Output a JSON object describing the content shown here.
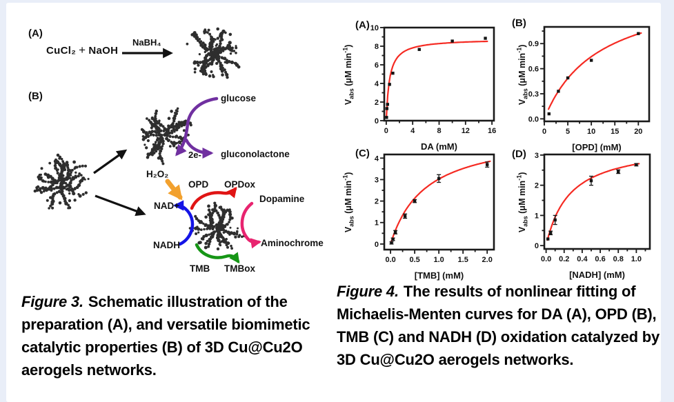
{
  "figure3": {
    "panelA": {
      "label": "(A)",
      "reactants_left": "CuCl₂",
      "plus": "+",
      "reactants_right": "NaOH",
      "arrow_label": "NaBH₄"
    },
    "panelB": {
      "label": "(B)",
      "glucose": "glucose",
      "electrons": "2e-",
      "gluconolactone": "gluconolactone",
      "h2o2": "H₂O₂",
      "opd": "OPD",
      "opdox": "OPDox",
      "dopamine": "Dopamine",
      "nad_plus": "NAD+",
      "nadh": "NADH",
      "aminochrome": "Aminochrome",
      "tmb": "TMB",
      "tmbox": "TMBox"
    },
    "caption": {
      "label": "Figure 3.",
      "text": "Schematic illustration of the preparation (A), and versatile biomimetic catalytic properties (B) of 3D Cu@Cu2O aerogels networks."
    }
  },
  "figure4": {
    "caption": {
      "label": "Figure 4.",
      "text": "The results of nonlinear fitting of Michaelis-Menten curves for DA (A), OPD (B), TMB (C) and NADH (D) oxidation catalyzed by 3D Cu@Cu2O aerogels networks."
    },
    "ylabel": {
      "v": "V",
      "sub": "abs",
      "mid": " (μM min",
      "sup": "-1",
      "close": ")"
    }
  },
  "chart_data": [
    {
      "type": "scatter",
      "panel": "(A)",
      "xlabel": "DA (mM)",
      "ylabel": "Vabs (μM min-1)",
      "xlim": [
        -0.3,
        16.3
      ],
      "ylim": [
        0,
        10
      ],
      "xticks": [
        0,
        4,
        8,
        12,
        16
      ],
      "xtick_labels": [
        "0",
        "4",
        "8",
        "12",
        "16"
      ],
      "xminor_step": 2,
      "yticks": [
        0,
        2,
        4,
        6,
        8,
        10
      ],
      "ytick_labels": [
        "0",
        "2",
        "4",
        "6",
        "8",
        "10"
      ],
      "yminor_step": 1,
      "points": [
        [
          0.05,
          0.35,
          0
        ],
        [
          0.1,
          1.3,
          0
        ],
        [
          0.2,
          1.75,
          0
        ],
        [
          0.5,
          3.9,
          0
        ],
        [
          1,
          5.1,
          0
        ],
        [
          5,
          7.65,
          0
        ],
        [
          10,
          8.55,
          0
        ],
        [
          15,
          8.85,
          0
        ]
      ],
      "fit": {
        "model": "michaelis-menten",
        "vmax": 8.8,
        "km": 0.5,
        "x_start": 0.03,
        "x_end": 15.3
      },
      "grid": false,
      "legend": null
    },
    {
      "type": "scatter",
      "panel": "(B)",
      "xlabel": "[OPD] (mM)",
      "ylabel": "Vabs (μM min-1)",
      "xlim": [
        0,
        22.3
      ],
      "ylim": [
        -0.03,
        1.1
      ],
      "xticks": [
        0,
        5,
        10,
        15,
        20
      ],
      "xtick_labels": [
        "0",
        "5",
        "10",
        "15",
        "20"
      ],
      "xminor_step": 2.5,
      "yticks": [
        0,
        0.3,
        0.6,
        0.9
      ],
      "ytick_labels": [
        "0.0",
        "0.3",
        "0.6",
        "0.9"
      ],
      "yminor_step": 0.15,
      "points": [
        [
          1,
          0.06,
          0
        ],
        [
          3,
          0.33,
          0
        ],
        [
          5,
          0.49,
          0
        ],
        [
          10,
          0.7,
          0
        ],
        [
          20,
          1.02,
          0
        ]
      ],
      "fit": {
        "model": "michaelis-menten",
        "vmax": 1.6,
        "km": 11.5,
        "x_start": 0.9,
        "x_end": 20.6
      },
      "grid": false,
      "legend": null
    },
    {
      "type": "scatter",
      "panel": "(C)",
      "xlabel": "[TMB] (mM)",
      "ylabel": "Vabs (μM min-1)",
      "xlim": [
        -0.13,
        2.14
      ],
      "ylim": [
        -0.26,
        4.17
      ],
      "xticks": [
        0,
        0.5,
        1,
        1.5,
        2
      ],
      "xtick_labels": [
        "0.0",
        "0.5",
        "1.0",
        "1.5",
        "2.0"
      ],
      "xminor_step": 0.25,
      "yticks": [
        0,
        1,
        2,
        3,
        4
      ],
      "ytick_labels": [
        "0",
        "1",
        "2",
        "3",
        "4"
      ],
      "yminor_step": 0.5,
      "points": [
        [
          0.02,
          0.05,
          0.05
        ],
        [
          0.05,
          0.22,
          0.06
        ],
        [
          0.1,
          0.55,
          0.08
        ],
        [
          0.3,
          1.3,
          0.1
        ],
        [
          0.5,
          2.0,
          0.07
        ],
        [
          1.0,
          3.05,
          0.18
        ],
        [
          2.0,
          3.7,
          0.12
        ]
      ],
      "fit": {
        "model": "michaelis-menten",
        "vmax": 5.2,
        "km": 0.72,
        "x_start": 0.01,
        "x_end": 2.06
      },
      "grid": false,
      "legend": null
    },
    {
      "type": "scatter",
      "panel": "(D)",
      "xlabel": "[NADH] (mM)",
      "ylabel": "Vabs (μM min-1)",
      "xlim": [
        -0.02,
        1.15
      ],
      "ylim": [
        -0.11,
        3.02
      ],
      "xticks": [
        0,
        0.2,
        0.4,
        0.6,
        0.8,
        1.0
      ],
      "xtick_labels": [
        "0.0",
        "0.2",
        "0.4",
        "0.6",
        "0.8",
        "1.0"
      ],
      "xminor_step": 0.1,
      "yticks": [
        0,
        1,
        2,
        3
      ],
      "ytick_labels": [
        "0",
        "1",
        "2",
        "3"
      ],
      "yminor_step": 0.5,
      "points": [
        [
          0.02,
          0.22,
          0
        ],
        [
          0.05,
          0.42,
          0.06
        ],
        [
          0.1,
          0.85,
          0.15
        ],
        [
          0.5,
          2.15,
          0.15
        ],
        [
          0.8,
          2.45,
          0.06
        ],
        [
          1.0,
          2.68,
          0.04
        ]
      ],
      "fit": {
        "model": "michaelis-menten",
        "vmax": 3.4,
        "km": 0.26,
        "x_start": 0.015,
        "x_end": 1.03
      },
      "grid": false,
      "legend": null
    }
  ],
  "colors": {
    "page_background": "#e9eef8",
    "card_background": "#ffffff",
    "curve_red": "#f52a22",
    "black": "#111111",
    "purple": "#7030a0",
    "orange": "#f2a12e",
    "red_arrow": "#e01414",
    "blue": "#1414e6",
    "pink": "#e8246f",
    "green": "#169616",
    "cluster_dots": "#2e2e2e"
  }
}
